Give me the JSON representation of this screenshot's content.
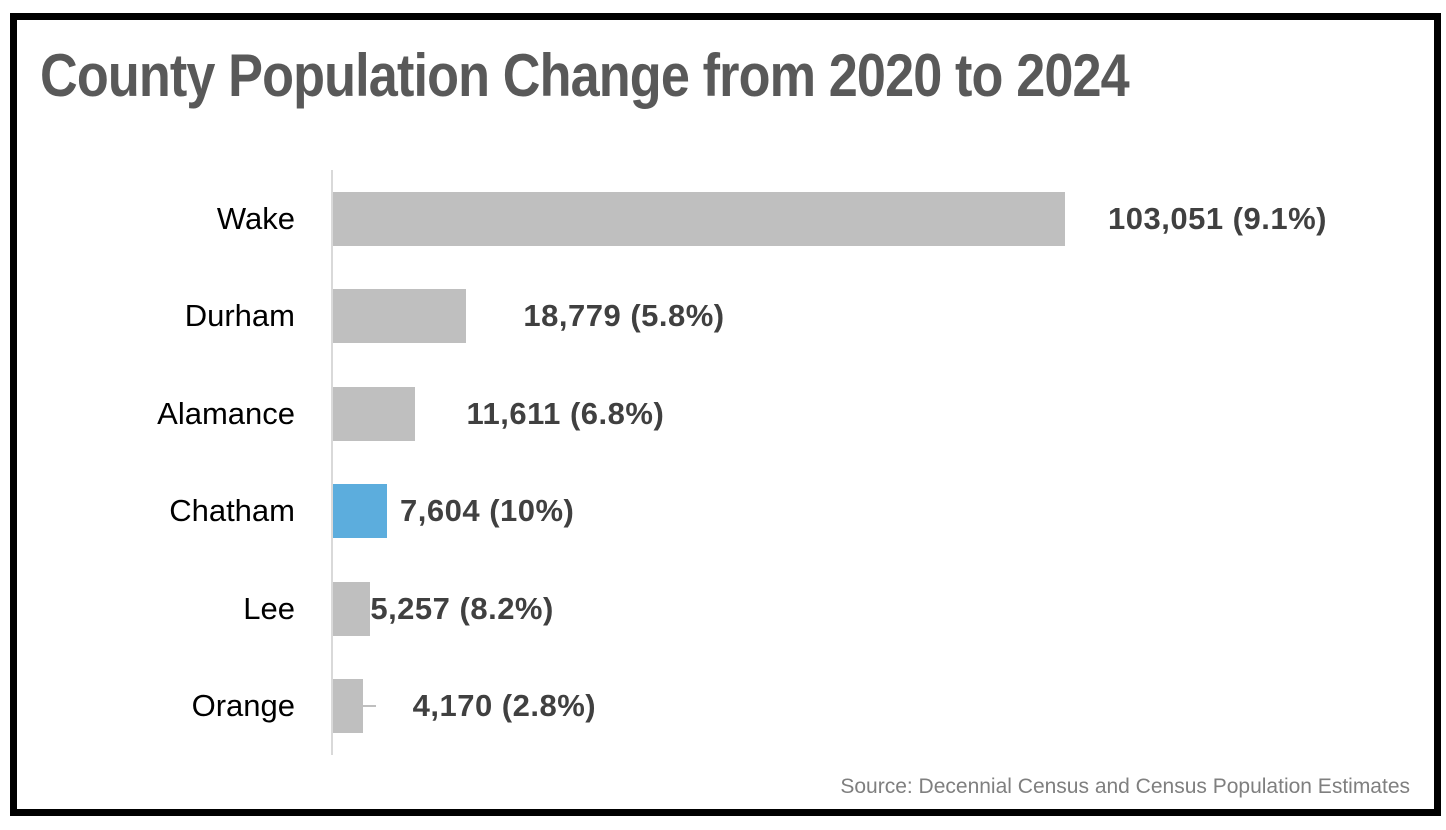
{
  "title": "County Population Change from 2020 to 2024",
  "source_note": "Source: Decennial Census and Census Population Estimates",
  "colors": {
    "bar_default": "#bfbfbf",
    "bar_highlight": "#5caddd",
    "title_text": "#595959",
    "value_label_text": "#404040",
    "category_label_text": "#000000",
    "axis_line": "#d9d9d9",
    "source_text": "#7f7f7f",
    "frame_border": "#000000"
  },
  "chart_data": {
    "type": "bar",
    "orientation": "horizontal",
    "title": "County Population Change from 2020 to 2024",
    "categories": [
      "Wake",
      "Durham",
      "Alamance",
      "Chatham",
      "Lee",
      "Orange"
    ],
    "values": [
      103051,
      18779,
      11611,
      7604,
      5257,
      4170
    ],
    "percent_change": [
      9.1,
      5.8,
      6.8,
      10,
      8.2,
      2.8
    ],
    "value_labels": [
      "103,051 (9.1%)",
      "18,779 (5.8%)",
      "11,611 (6.8%)",
      "7,604 (10%)",
      "5,257 (8.2%)",
      "4,170 (2.8%)"
    ],
    "highlight_category": "Chatham",
    "leader_line_category": "Orange",
    "xlim": [
      0,
      103051
    ],
    "grid": false,
    "legend": false,
    "value_axis_shown": false,
    "category_axis_line_shown": true
  }
}
